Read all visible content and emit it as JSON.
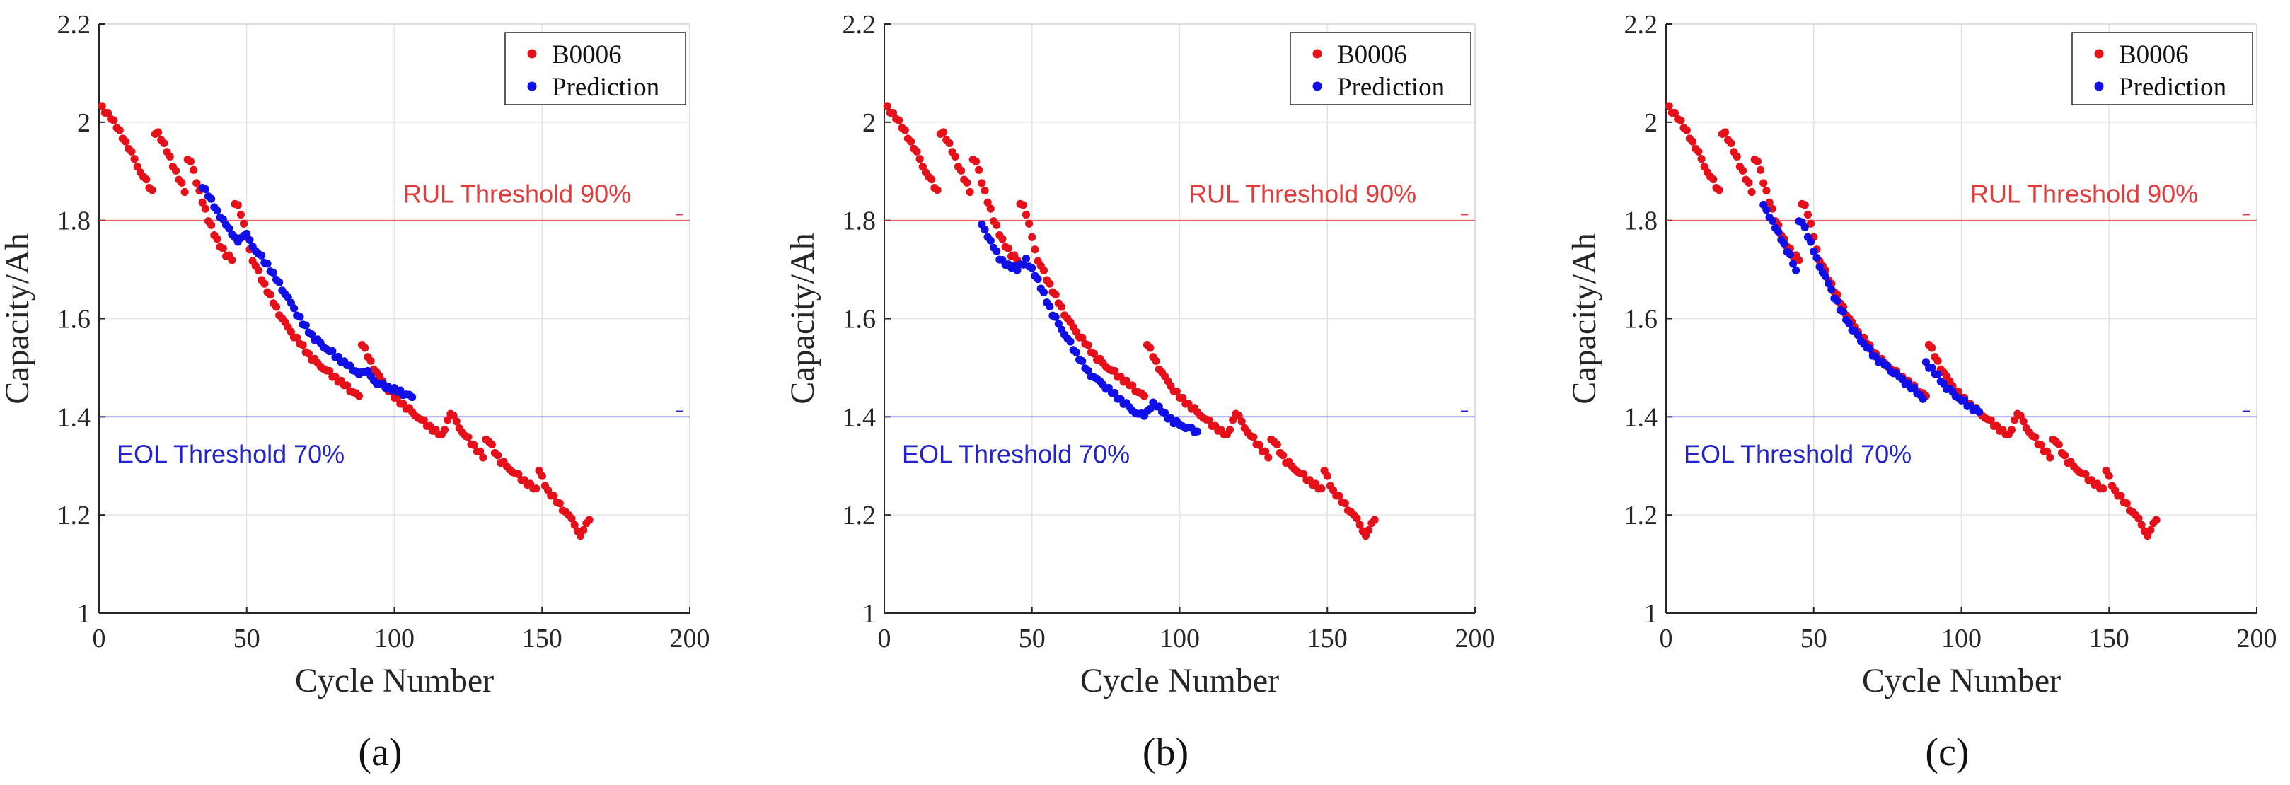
{
  "chart_data": [
    {
      "type": "scatter",
      "panel_label": "(a)",
      "xlabel": "Cycle Number",
      "ylabel": "Capacity/Ah",
      "xlim": [
        0,
        200
      ],
      "ylim": [
        1,
        2.2
      ],
      "xticks": [
        "0",
        "50",
        "100",
        "150",
        "200"
      ],
      "yticks": [
        "1",
        "1.2",
        "1.4",
        "1.6",
        "1.8",
        "2",
        "2.2"
      ],
      "grid": true,
      "legend_position": "top-right",
      "thresholds": [
        {
          "label": "RUL Threshold 90%",
          "y": 1.8,
          "color": "#e23b3b"
        },
        {
          "label": "EOL Threshold 70%",
          "y": 1.4,
          "color": "#2323cc"
        }
      ],
      "series": [
        {
          "name": "B0006",
          "color": "#e6101a",
          "anchors": [
            [
              1,
              2.03
            ],
            [
              4,
              2.01
            ],
            [
              7,
              1.98
            ],
            [
              10,
              1.95
            ],
            [
              14,
              1.9
            ],
            [
              18,
              1.86
            ],
            [
              20,
              1.98
            ],
            [
              23,
              1.94
            ],
            [
              26,
              1.9
            ],
            [
              29,
              1.86
            ],
            [
              31,
              1.92
            ],
            [
              34,
              1.86
            ],
            [
              37,
              1.8
            ],
            [
              40,
              1.76
            ],
            [
              43,
              1.73
            ],
            [
              45,
              1.72
            ],
            [
              47,
              1.83
            ],
            [
              49,
              1.79
            ],
            [
              52,
              1.72
            ],
            [
              56,
              1.67
            ],
            [
              60,
              1.62
            ],
            [
              64,
              1.58
            ],
            [
              68,
              1.55
            ],
            [
              72,
              1.52
            ],
            [
              76,
              1.5
            ],
            [
              80,
              1.48
            ],
            [
              84,
              1.46
            ],
            [
              88,
              1.44
            ],
            [
              89,
              1.55
            ],
            [
              92,
              1.51
            ],
            [
              96,
              1.47
            ],
            [
              100,
              1.44
            ],
            [
              104,
              1.42
            ],
            [
              108,
              1.4
            ],
            [
              112,
              1.38
            ],
            [
              116,
              1.36
            ],
            [
              119,
              1.41
            ],
            [
              123,
              1.37
            ],
            [
              127,
              1.34
            ],
            [
              130,
              1.32
            ],
            [
              132,
              1.35
            ],
            [
              136,
              1.31
            ],
            [
              140,
              1.29
            ],
            [
              144,
              1.27
            ],
            [
              148,
              1.25
            ],
            [
              149,
              1.29
            ],
            [
              152,
              1.25
            ],
            [
              156,
              1.22
            ],
            [
              160,
              1.19
            ],
            [
              163,
              1.16
            ],
            [
              166,
              1.19
            ]
          ]
        },
        {
          "name": "Prediction",
          "color": "#1010e6",
          "anchors": [
            [
              35,
              1.87
            ],
            [
              38,
              1.84
            ],
            [
              41,
              1.81
            ],
            [
              44,
              1.78
            ],
            [
              47,
              1.76
            ],
            [
              50,
              1.77
            ],
            [
              53,
              1.74
            ],
            [
              57,
              1.71
            ],
            [
              61,
              1.67
            ],
            [
              65,
              1.63
            ],
            [
              69,
              1.59
            ],
            [
              73,
              1.56
            ],
            [
              77,
              1.54
            ],
            [
              81,
              1.52
            ],
            [
              85,
              1.5
            ],
            [
              88,
              1.49
            ],
            [
              91,
              1.49
            ],
            [
              94,
              1.47
            ],
            [
              98,
              1.46
            ],
            [
              102,
              1.45
            ],
            [
              106,
              1.44
            ]
          ]
        }
      ]
    },
    {
      "type": "scatter",
      "panel_label": "(b)",
      "xlabel": "Cycle Number",
      "ylabel": "Capacity/Ah",
      "xlim": [
        0,
        200
      ],
      "ylim": [
        1,
        2.2
      ],
      "xticks": [
        "0",
        "50",
        "100",
        "150",
        "200"
      ],
      "yticks": [
        "1",
        "1.2",
        "1.4",
        "1.6",
        "1.8",
        "2",
        "2.2"
      ],
      "grid": true,
      "legend_position": "top-right",
      "thresholds": [
        {
          "label": "RUL Threshold 90%",
          "y": 1.8,
          "color": "#e23b3b"
        },
        {
          "label": "EOL Threshold 70%",
          "y": 1.4,
          "color": "#2323cc"
        }
      ],
      "series": [
        {
          "name": "B0006",
          "color": "#e6101a",
          "anchors": [
            [
              1,
              2.03
            ],
            [
              4,
              2.01
            ],
            [
              7,
              1.98
            ],
            [
              10,
              1.95
            ],
            [
              14,
              1.9
            ],
            [
              18,
              1.86
            ],
            [
              20,
              1.98
            ],
            [
              23,
              1.94
            ],
            [
              26,
              1.9
            ],
            [
              29,
              1.86
            ],
            [
              31,
              1.92
            ],
            [
              34,
              1.86
            ],
            [
              37,
              1.8
            ],
            [
              40,
              1.76
            ],
            [
              43,
              1.73
            ],
            [
              45,
              1.72
            ],
            [
              47,
              1.83
            ],
            [
              49,
              1.79
            ],
            [
              52,
              1.72
            ],
            [
              56,
              1.67
            ],
            [
              60,
              1.62
            ],
            [
              64,
              1.58
            ],
            [
              68,
              1.55
            ],
            [
              72,
              1.52
            ],
            [
              76,
              1.5
            ],
            [
              80,
              1.48
            ],
            [
              84,
              1.46
            ],
            [
              88,
              1.44
            ],
            [
              89,
              1.55
            ],
            [
              92,
              1.51
            ],
            [
              96,
              1.47
            ],
            [
              100,
              1.44
            ],
            [
              104,
              1.42
            ],
            [
              108,
              1.4
            ],
            [
              112,
              1.38
            ],
            [
              116,
              1.36
            ],
            [
              119,
              1.41
            ],
            [
              123,
              1.37
            ],
            [
              127,
              1.34
            ],
            [
              130,
              1.32
            ],
            [
              132,
              1.35
            ],
            [
              136,
              1.31
            ],
            [
              140,
              1.29
            ],
            [
              144,
              1.27
            ],
            [
              148,
              1.25
            ],
            [
              149,
              1.29
            ],
            [
              152,
              1.25
            ],
            [
              156,
              1.22
            ],
            [
              160,
              1.19
            ],
            [
              163,
              1.16
            ],
            [
              166,
              1.19
            ]
          ]
        },
        {
          "name": "Prediction",
          "color": "#1010e6",
          "anchors": [
            [
              33,
              1.79
            ],
            [
              36,
              1.76
            ],
            [
              39,
              1.72
            ],
            [
              42,
              1.71
            ],
            [
              45,
              1.7
            ],
            [
              48,
              1.72
            ],
            [
              51,
              1.69
            ],
            [
              54,
              1.65
            ],
            [
              57,
              1.61
            ],
            [
              61,
              1.57
            ],
            [
              65,
              1.53
            ],
            [
              69,
              1.49
            ],
            [
              73,
              1.47
            ],
            [
              77,
              1.45
            ],
            [
              81,
              1.43
            ],
            [
              85,
              1.41
            ],
            [
              88,
              1.4
            ],
            [
              91,
              1.43
            ],
            [
              94,
              1.41
            ],
            [
              98,
              1.39
            ],
            [
              102,
              1.38
            ],
            [
              106,
              1.37
            ]
          ]
        }
      ]
    },
    {
      "type": "scatter",
      "panel_label": "(c)",
      "xlabel": "Cycle Number",
      "ylabel": "Capacity/Ah",
      "xlim": [
        0,
        200
      ],
      "ylim": [
        1,
        2.2
      ],
      "xticks": [
        "0",
        "50",
        "100",
        "150",
        "200"
      ],
      "yticks": [
        "1",
        "1.2",
        "1.4",
        "1.6",
        "1.8",
        "2",
        "2.2"
      ],
      "grid": true,
      "legend_position": "top-right",
      "thresholds": [
        {
          "label": "RUL Threshold 90%",
          "y": 1.8,
          "color": "#e23b3b"
        },
        {
          "label": "EOL Threshold 70%",
          "y": 1.4,
          "color": "#2323cc"
        }
      ],
      "series": [
        {
          "name": "B0006",
          "color": "#e6101a",
          "anchors": [
            [
              1,
              2.03
            ],
            [
              4,
              2.01
            ],
            [
              7,
              1.98
            ],
            [
              10,
              1.95
            ],
            [
              14,
              1.9
            ],
            [
              18,
              1.86
            ],
            [
              20,
              1.98
            ],
            [
              23,
              1.94
            ],
            [
              26,
              1.9
            ],
            [
              29,
              1.86
            ],
            [
              31,
              1.92
            ],
            [
              34,
              1.86
            ],
            [
              37,
              1.8
            ],
            [
              40,
              1.76
            ],
            [
              43,
              1.73
            ],
            [
              45,
              1.72
            ],
            [
              47,
              1.83
            ],
            [
              49,
              1.79
            ],
            [
              52,
              1.72
            ],
            [
              56,
              1.67
            ],
            [
              60,
              1.62
            ],
            [
              64,
              1.58
            ],
            [
              68,
              1.55
            ],
            [
              72,
              1.52
            ],
            [
              76,
              1.5
            ],
            [
              80,
              1.48
            ],
            [
              84,
              1.46
            ],
            [
              88,
              1.44
            ],
            [
              89,
              1.55
            ],
            [
              92,
              1.51
            ],
            [
              96,
              1.47
            ],
            [
              100,
              1.44
            ],
            [
              104,
              1.42
            ],
            [
              108,
              1.4
            ],
            [
              112,
              1.38
            ],
            [
              116,
              1.36
            ],
            [
              119,
              1.41
            ],
            [
              123,
              1.37
            ],
            [
              127,
              1.34
            ],
            [
              130,
              1.32
            ],
            [
              132,
              1.35
            ],
            [
              136,
              1.31
            ],
            [
              140,
              1.29
            ],
            [
              144,
              1.27
            ],
            [
              148,
              1.25
            ],
            [
              149,
              1.29
            ],
            [
              152,
              1.25
            ],
            [
              156,
              1.22
            ],
            [
              160,
              1.19
            ],
            [
              163,
              1.16
            ],
            [
              166,
              1.19
            ]
          ]
        },
        {
          "name": "Prediction",
          "color": "#1010e6",
          "anchors": [
            [
              33,
              1.83
            ],
            [
              36,
              1.8
            ],
            [
              39,
              1.76
            ],
            [
              42,
              1.73
            ],
            [
              44,
              1.7
            ],
            [
              46,
              1.8
            ],
            [
              48,
              1.77
            ],
            [
              51,
              1.72
            ],
            [
              55,
              1.67
            ],
            [
              59,
              1.62
            ],
            [
              63,
              1.58
            ],
            [
              67,
              1.55
            ],
            [
              71,
              1.52
            ],
            [
              75,
              1.5
            ],
            [
              79,
              1.48
            ],
            [
              83,
              1.46
            ],
            [
              87,
              1.44
            ],
            [
              88,
              1.51
            ],
            [
              91,
              1.49
            ],
            [
              95,
              1.46
            ],
            [
              99,
              1.44
            ],
            [
              103,
              1.42
            ],
            [
              106,
              1.41
            ]
          ]
        }
      ]
    }
  ]
}
